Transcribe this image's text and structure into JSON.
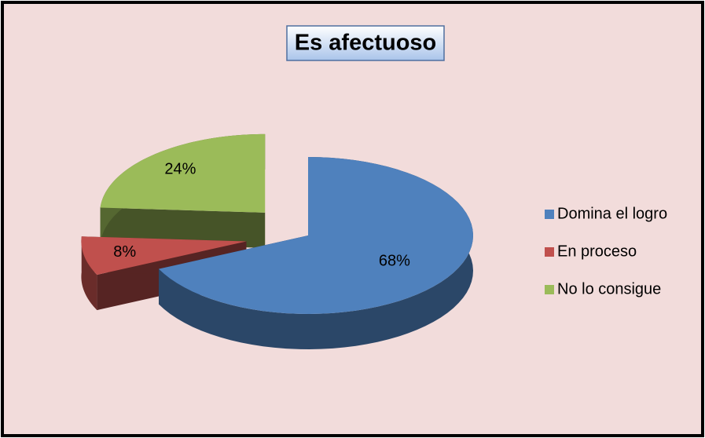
{
  "chart_data": {
    "type": "pie",
    "title": "Es afectuoso",
    "categories": [
      "Domina el logro",
      "En proceso",
      "No lo consigue"
    ],
    "values": [
      68,
      8,
      24
    ],
    "value_labels": [
      "68%",
      "8%",
      "24%"
    ],
    "colors": [
      "#4f81bd",
      "#c0504d",
      "#9bbb59"
    ],
    "legend": "right"
  }
}
